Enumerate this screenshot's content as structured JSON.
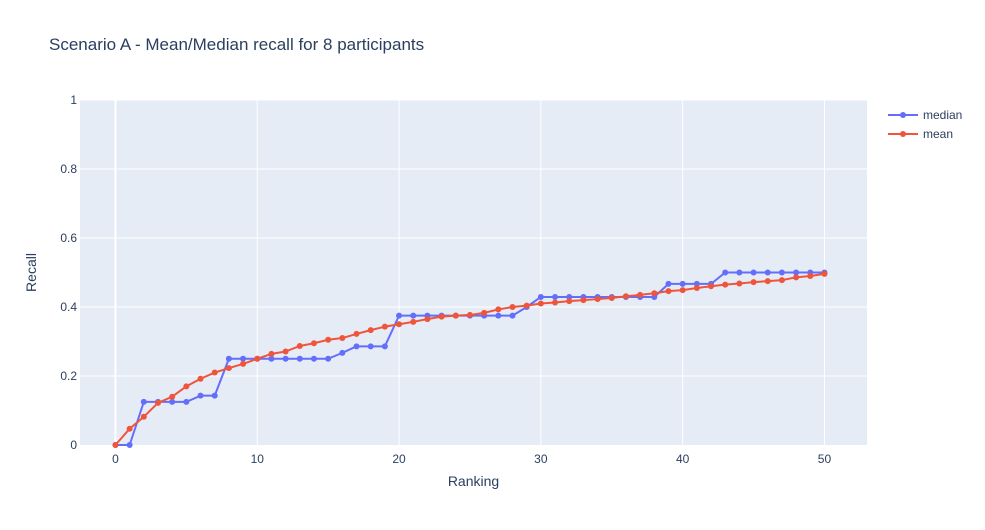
{
  "chart_data": {
    "type": "line",
    "title": "Scenario A - Mean/Median recall for 8 participants",
    "xlabel": "Ranking",
    "ylabel": "Recall",
    "xlim": [
      -2.5,
      53
    ],
    "ylim": [
      0,
      1
    ],
    "x_ticks": [
      0,
      10,
      20,
      30,
      40,
      50
    ],
    "y_ticks": [
      0,
      0.2,
      0.4,
      0.6,
      0.8,
      1
    ],
    "y_tick_labels": [
      "0",
      "0.2",
      "0.4",
      "0.6",
      "0.8",
      "1"
    ],
    "grid": true,
    "legend_position": "top-right",
    "x": [
      0,
      1,
      2,
      3,
      4,
      5,
      6,
      7,
      8,
      9,
      10,
      11,
      12,
      13,
      14,
      15,
      16,
      17,
      18,
      19,
      20,
      21,
      22,
      23,
      24,
      25,
      26,
      27,
      28,
      29,
      30,
      31,
      32,
      33,
      34,
      35,
      36,
      37,
      38,
      39,
      40,
      41,
      42,
      43,
      44,
      45,
      46,
      47,
      48,
      49,
      50
    ],
    "series": [
      {
        "name": "median",
        "color": "#636efa",
        "values": [
          0,
          0,
          0.125,
          0.125,
          0.125,
          0.125,
          0.143,
          0.143,
          0.25,
          0.25,
          0.25,
          0.25,
          0.25,
          0.25,
          0.25,
          0.25,
          0.267,
          0.286,
          0.286,
          0.286,
          0.375,
          0.375,
          0.375,
          0.375,
          0.375,
          0.375,
          0.375,
          0.375,
          0.375,
          0.4,
          0.429,
          0.429,
          0.429,
          0.429,
          0.429,
          0.429,
          0.429,
          0.429,
          0.429,
          0.467,
          0.467,
          0.467,
          0.467,
          0.5,
          0.5,
          0.5,
          0.5,
          0.5,
          0.5,
          0.5,
          0.5
        ]
      },
      {
        "name": "mean",
        "color": "#ef553b",
        "values": [
          0,
          0.047,
          0.082,
          0.122,
          0.14,
          0.17,
          0.192,
          0.21,
          0.223,
          0.235,
          0.25,
          0.264,
          0.271,
          0.287,
          0.295,
          0.305,
          0.31,
          0.322,
          0.333,
          0.343,
          0.35,
          0.357,
          0.365,
          0.372,
          0.375,
          0.377,
          0.383,
          0.393,
          0.4,
          0.404,
          0.41,
          0.413,
          0.417,
          0.42,
          0.423,
          0.426,
          0.431,
          0.435,
          0.44,
          0.446,
          0.449,
          0.455,
          0.46,
          0.465,
          0.468,
          0.472,
          0.475,
          0.478,
          0.486,
          0.49,
          0.496
        ]
      }
    ]
  }
}
